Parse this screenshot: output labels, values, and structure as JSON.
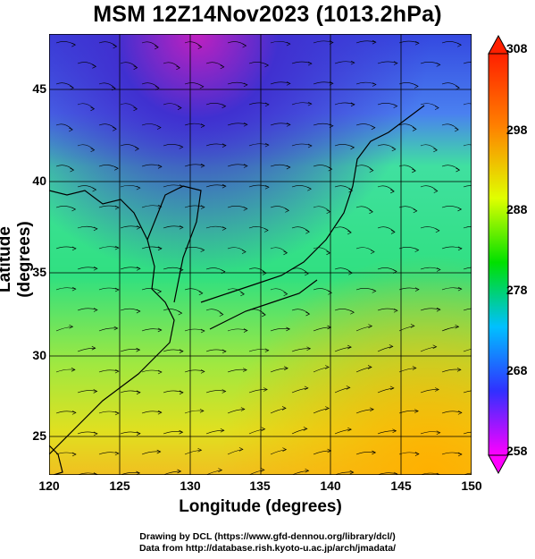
{
  "title": "MSM 12Z14Nov2023 (1013.2hPa)",
  "axes": {
    "xlabel": "Longitude (degrees)",
    "ylabel": "Latitude  (degrees)",
    "x_ticks": [
      "120",
      "125",
      "130",
      "135",
      "140",
      "145",
      "150"
    ],
    "y_ticks": [
      "45",
      "40",
      "35",
      "30",
      "25"
    ]
  },
  "colorbar": {
    "labels": [
      "308",
      "298",
      "288",
      "278",
      "268",
      "258"
    ],
    "min": 258,
    "max": 308,
    "colors": [
      "#ff00ff",
      "#3030ff",
      "#00c0ff",
      "#00e000",
      "#e0ff00",
      "#ff8000",
      "#ff2000"
    ]
  },
  "credits": {
    "line1": "Drawing by DCL (https://www.gfd-dennou.org/library/dcl/)",
    "line2": "Data from http://database.rish.kyoto-u.ac.jp/arch/jmadata/"
  }
}
